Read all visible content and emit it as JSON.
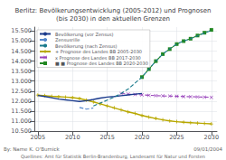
{
  "chart_data": {
    "type": "line",
    "title": "Berlitz: Bevölkerungsentwicklung (2005-2012) und Prognosen\n(bis 2030) in den aktuellen Grenzen",
    "annotations": [
      "By: Name K. O'Burnick",
      "09/01/2004",
      "Quellines: Amt für Statistik Berlin-Brandenburg, Landesamt für Natur und Forsten"
    ],
    "xlim": [
      2004.5,
      2030.8
    ],
    "xticks": [
      2005,
      2010,
      2015,
      2020,
      2025,
      2030
    ],
    "ylim": [
      10500,
      15700
    ],
    "yticks": [
      {
        "value": 10500,
        "label": "10.500"
      },
      {
        "value": 11000,
        "label": "11.000"
      },
      {
        "value": 11500,
        "label": "11.500"
      },
      {
        "value": 12000,
        "label": "12.000"
      },
      {
        "value": 12500,
        "label": "12.500"
      },
      {
        "value": 13000,
        "label": "13.000"
      },
      {
        "value": 13500,
        "label": "13.500"
      },
      {
        "value": 14000,
        "label": "14.000"
      },
      {
        "value": 14500,
        "label": "14.500"
      },
      {
        "value": 15000,
        "label": "15.000"
      },
      {
        "value": 15500,
        "label": "15.500"
      }
    ],
    "grid": true,
    "legend": "upper left",
    "series": [
      {
        "name": "Bevölkerung (vor Zensus)",
        "color": "#1a3a8c",
        "line_style": "solid",
        "x": [
          2005,
          2006,
          2007,
          2008,
          2009,
          2010,
          2011,
          2012,
          2013,
          2014,
          2015,
          2016,
          2017,
          2018,
          2019,
          2020
        ],
        "values": [
          12280,
          12230,
          12170,
          12100,
          12060,
          12020,
          11980,
          12020,
          12080,
          12150,
          12200,
          12230,
          12270,
          12310,
          12350,
          12380
        ]
      },
      {
        "name": "Zensusrille",
        "color": "#5588cc",
        "line_style": "dashed",
        "x": [
          2011,
          2012,
          2013
        ],
        "values": [
          11680,
          11600,
          11650
        ]
      },
      {
        "name": "Bevölkerung (nach Zensus)",
        "color": "#1a7a8c",
        "line_style": "dashed",
        "x": [
          2013,
          2014,
          2015,
          2016,
          2017,
          2018,
          2019,
          2020,
          2021,
          2022,
          2023,
          2024,
          2025,
          2026,
          2027,
          2028,
          2029,
          2030
        ],
        "values": [
          11750,
          11900,
          12050,
          12200,
          12380,
          12600,
          12900,
          13200,
          13600,
          14000,
          14350,
          14620,
          14850,
          15000,
          15120,
          15260,
          15400,
          15530
        ]
      },
      {
        "name": "+ Prognose des Landes BB 2005-2030",
        "color": "#b8a800",
        "line_style": "solid",
        "marker": "plus",
        "x": [
          2005,
          2006,
          2007,
          2008,
          2009,
          2010,
          2011,
          2012,
          2013,
          2014,
          2015,
          2016,
          2017,
          2018,
          2019,
          2020,
          2021,
          2022,
          2023,
          2024,
          2025,
          2026,
          2027,
          2028,
          2029,
          2030
        ],
        "values": [
          12300,
          12270,
          12240,
          12220,
          12200,
          12170,
          12130,
          12050,
          11960,
          11860,
          11760,
          11660,
          11560,
          11460,
          11380,
          11280,
          11200,
          11130,
          11060,
          11010,
          10970,
          10940,
          10920,
          10900,
          10880,
          10860
        ]
      },
      {
        "name": "x Prognose des Landes BB 2017-2030",
        "color": "#9944bb",
        "line_style": "dashed",
        "marker": "x",
        "x": [
          2017,
          2018,
          2019,
          2020,
          2021,
          2022,
          2023,
          2024,
          2025,
          2026,
          2027,
          2028,
          2029,
          2030
        ],
        "values": [
          12380,
          12350,
          12330,
          12310,
          12290,
          12270,
          12260,
          12250,
          12240,
          12230,
          12220,
          12210,
          12200,
          12190
        ]
      },
      {
        "name": "■ ■ Prognose des Landes BB 2020-2030",
        "color": "#228822",
        "line_style": "dashed",
        "marker": "square",
        "x": [
          2020,
          2021,
          2022,
          2023,
          2024,
          2025,
          2026,
          2027,
          2028,
          2029,
          2030
        ],
        "values": [
          13200,
          13600,
          14000,
          14350,
          14600,
          14850,
          15000,
          15120,
          15280,
          15420,
          15560
        ]
      }
    ]
  }
}
